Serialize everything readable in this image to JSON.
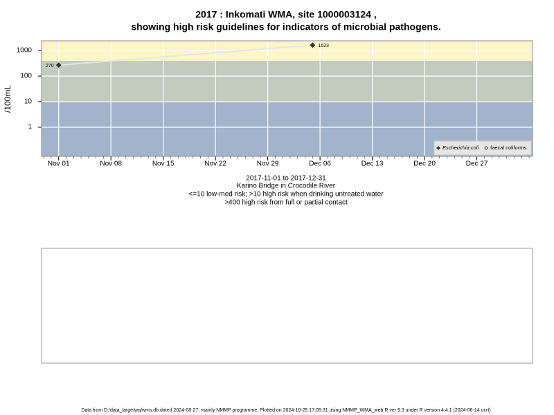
{
  "chart_data": {
    "type": "line",
    "title": [
      "2017 : Inkomati WMA, site 1000003124 ,",
      "showing high risk guidelines for indicators of microbial pathogens."
    ],
    "subtitle": [
      "2017-11-01 to 2017-12-31",
      "Karino Bridge in Crocodile River",
      "<=10 low-med risk; >10 high risk when drinking untreated water",
      ">400 high risk from full or partial contact"
    ],
    "y_label": "/100mL",
    "log_y": true,
    "ylim": [
      0.073,
      2400
    ],
    "yticks": [
      1,
      10,
      100,
      1000
    ],
    "xlim": [
      "2017-10-29T17:00",
      "2018-01-03T11:00"
    ],
    "xticks": [
      {
        "value": "2017-11-01",
        "label": "Nov 01"
      },
      {
        "value": "2017-11-08",
        "label": "Nov 08"
      },
      {
        "value": "2017-11-15",
        "label": "Nov 15"
      },
      {
        "value": "2017-11-22",
        "label": "Nov 22"
      },
      {
        "value": "2017-11-29",
        "label": "Nov 29"
      },
      {
        "value": "2017-12-06",
        "label": "Dec 06"
      },
      {
        "value": "2017-12-13",
        "label": "Dec 13"
      },
      {
        "value": "2017-12-20",
        "label": "Dec 20"
      },
      {
        "value": "2017-12-27",
        "label": "Dec 27"
      }
    ],
    "grid": true,
    "thresholds": [
      10,
      400
    ],
    "band_colors": [
      "#a2b4cc",
      "#c2cbbd",
      "#fbf5c8"
    ],
    "legend_position": "bottom-right",
    "series": [
      {
        "name": "Escherichia coli",
        "color": "#333333",
        "marker_fill": "#333333",
        "line_color": "#e6e6e6",
        "x": [
          "2017-11-01",
          "2017-12-05"
        ],
        "values": [
          270,
          1623
        ]
      },
      {
        "name": "faecal coliforms",
        "color": "#333333",
        "marker_fill": "#ffffff",
        "line_color": "#e6e6e6",
        "x": [],
        "values": []
      }
    ],
    "footer": "Data from D:/data_large/wq/wms.db dated 2024-08-27, mainly NMMP programme. Plotted on 2024-10-25 17:05:31 using NMMP_WMA_web.R ver 9.3 under R version 4.4.1 (2024-06-14 ucrt)"
  }
}
